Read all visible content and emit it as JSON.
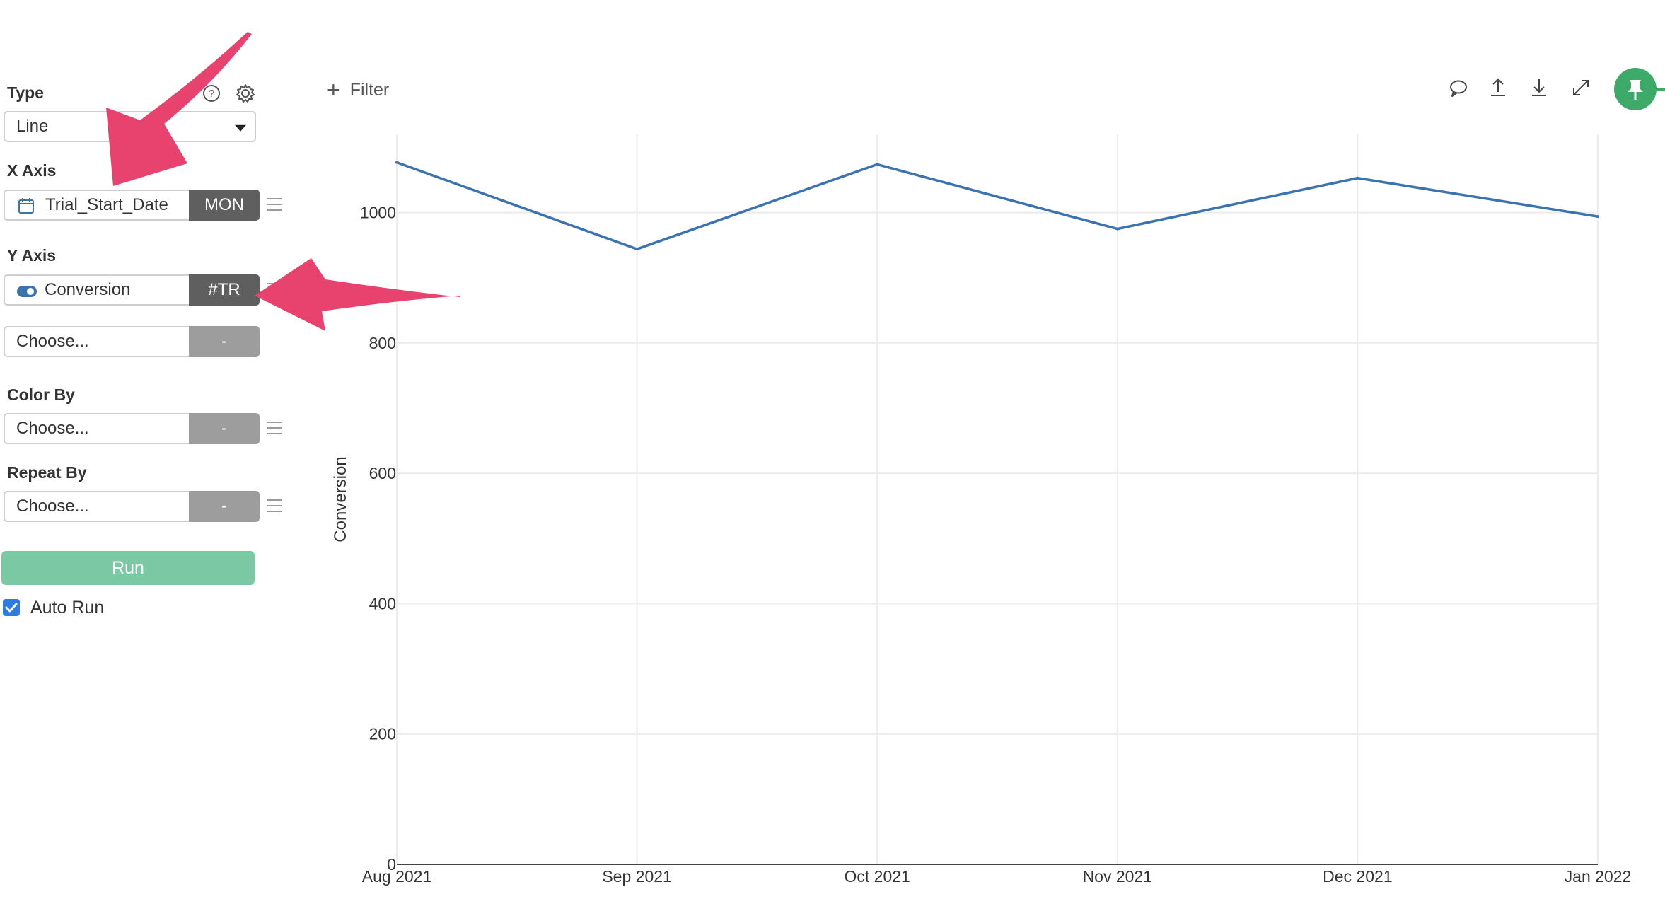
{
  "sidebar": {
    "type_label": "Type",
    "type_value": "Line",
    "x_axis_label": "X Axis",
    "x_field": "Trial_Start_Date",
    "x_agg": "MON",
    "y_axis_label": "Y Axis",
    "y_field": "Conversion",
    "y_agg": "#TR",
    "y2_placeholder": "Choose...",
    "y2_agg": "-",
    "color_by_label": "Color By",
    "color_by_placeholder": "Choose...",
    "color_by_agg": "-",
    "repeat_by_label": "Repeat By",
    "repeat_by_placeholder": "Choose...",
    "repeat_by_agg": "-",
    "run_label": "Run",
    "auto_run_label": "Auto Run",
    "auto_run_checked": true
  },
  "toolbar": {
    "filter_label": "Filter",
    "icons": [
      "comment-icon",
      "upload-icon",
      "download-icon",
      "expand-icon",
      "pin-icon"
    ]
  },
  "colors": {
    "line": "#3b73b0",
    "run_button": "#7bc9a4",
    "pin_button": "#3daa6a",
    "annotation_arrow": "#e8436e",
    "agg_dark": "#5f5f5f",
    "agg_light": "#9d9d9d"
  },
  "chart_data": {
    "type": "line",
    "categories": [
      "Aug 2021",
      "Sep 2021",
      "Oct 2021",
      "Nov 2021",
      "Dec 2021",
      "Jan 2022"
    ],
    "series": [
      {
        "values": [
          1077,
          944,
          1074,
          975,
          1053,
          994
        ]
      }
    ],
    "ylabel": "Conversion",
    "ylim": [
      0,
      1120
    ],
    "yticks": [
      0,
      200,
      400,
      600,
      800,
      1000
    ],
    "grid": true
  }
}
